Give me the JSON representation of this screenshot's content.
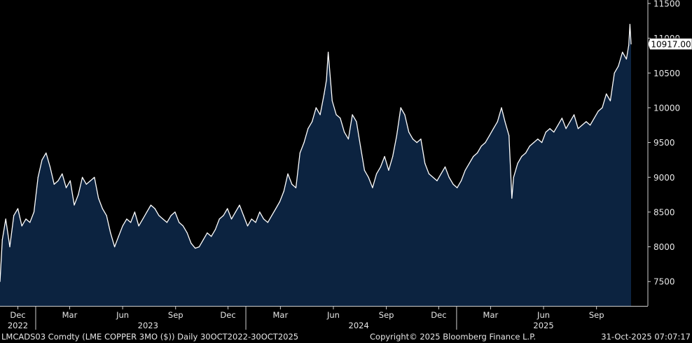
{
  "chart_data": {
    "type": "area",
    "ylim": [
      7150,
      11550
    ],
    "x_range": [
      "2022-10-31",
      "2025-10-31"
    ],
    "y_ticks": [
      7500,
      8000,
      8500,
      9000,
      9500,
      10000,
      10500,
      11000,
      11500
    ],
    "y_tick_labels": [
      "7500",
      "8000",
      "8500",
      "9000",
      "9500",
      "10000",
      "10500",
      "11000",
      "11500"
    ],
    "x_ticks": [
      {
        "label": "Dec",
        "date": "2022-12-01"
      },
      {
        "label": "Mar",
        "date": "2023-03-01"
      },
      {
        "label": "Jun",
        "date": "2023-06-01"
      },
      {
        "label": "Sep",
        "date": "2023-09-01"
      },
      {
        "label": "Dec",
        "date": "2023-12-01"
      },
      {
        "label": "Mar",
        "date": "2024-03-01"
      },
      {
        "label": "Jun",
        "date": "2024-06-01"
      },
      {
        "label": "Sep",
        "date": "2024-09-01"
      },
      {
        "label": "Dec",
        "date": "2024-12-01"
      },
      {
        "label": "Mar",
        "date": "2025-03-01"
      },
      {
        "label": "Jun",
        "date": "2025-06-01"
      },
      {
        "label": "Sep",
        "date": "2025-09-01"
      }
    ],
    "year_labels": [
      {
        "label": "2022",
        "date": "2022-12-01"
      },
      {
        "label": "2023",
        "date": "2023-07-15"
      },
      {
        "label": "2024",
        "date": "2024-07-15"
      },
      {
        "label": "2025",
        "date": "2025-06-01"
      }
    ],
    "last_value_label": "10917.00",
    "grid": false,
    "legend": "none",
    "series": [
      {
        "color": "#ffffff",
        "fill": "#0c2340",
        "x": [
          "2022-10-31",
          "2022-11-04",
          "2022-11-10",
          "2022-11-17",
          "2022-11-24",
          "2022-12-01",
          "2022-12-08",
          "2022-12-15",
          "2022-12-22",
          "2022-12-29",
          "2023-01-05",
          "2023-01-12",
          "2023-01-19",
          "2023-01-26",
          "2023-02-02",
          "2023-02-09",
          "2023-02-16",
          "2023-02-23",
          "2023-03-02",
          "2023-03-09",
          "2023-03-16",
          "2023-03-23",
          "2023-03-30",
          "2023-04-06",
          "2023-04-13",
          "2023-04-20",
          "2023-04-27",
          "2023-05-04",
          "2023-05-11",
          "2023-05-18",
          "2023-05-25",
          "2023-06-01",
          "2023-06-08",
          "2023-06-15",
          "2023-06-22",
          "2023-06-29",
          "2023-07-06",
          "2023-07-13",
          "2023-07-20",
          "2023-07-27",
          "2023-08-03",
          "2023-08-10",
          "2023-08-17",
          "2023-08-24",
          "2023-08-31",
          "2023-09-07",
          "2023-09-14",
          "2023-09-21",
          "2023-09-28",
          "2023-10-05",
          "2023-10-12",
          "2023-10-19",
          "2023-10-26",
          "2023-11-02",
          "2023-11-09",
          "2023-11-16",
          "2023-11-23",
          "2023-11-30",
          "2023-12-07",
          "2023-12-14",
          "2023-12-21",
          "2023-12-28",
          "2024-01-04",
          "2024-01-11",
          "2024-01-18",
          "2024-01-25",
          "2024-02-01",
          "2024-02-08",
          "2024-02-15",
          "2024-02-22",
          "2024-02-29",
          "2024-03-07",
          "2024-03-14",
          "2024-03-21",
          "2024-03-28",
          "2024-04-04",
          "2024-04-11",
          "2024-04-18",
          "2024-04-25",
          "2024-05-02",
          "2024-05-09",
          "2024-05-16",
          "2024-05-20",
          "2024-05-23",
          "2024-05-30",
          "2024-06-06",
          "2024-06-13",
          "2024-06-20",
          "2024-06-27",
          "2024-07-04",
          "2024-07-11",
          "2024-07-18",
          "2024-07-25",
          "2024-08-01",
          "2024-08-08",
          "2024-08-15",
          "2024-08-22",
          "2024-08-29",
          "2024-09-05",
          "2024-09-12",
          "2024-09-19",
          "2024-09-26",
          "2024-10-03",
          "2024-10-10",
          "2024-10-17",
          "2024-10-24",
          "2024-10-31",
          "2024-11-07",
          "2024-11-14",
          "2024-11-21",
          "2024-11-28",
          "2024-12-05",
          "2024-12-12",
          "2024-12-19",
          "2024-12-26",
          "2025-01-02",
          "2025-01-09",
          "2025-01-16",
          "2025-01-23",
          "2025-01-30",
          "2025-02-06",
          "2025-02-13",
          "2025-02-20",
          "2025-02-27",
          "2025-03-06",
          "2025-03-13",
          "2025-03-20",
          "2025-03-26",
          "2025-04-02",
          "2025-04-07",
          "2025-04-10",
          "2025-04-17",
          "2025-04-24",
          "2025-05-01",
          "2025-05-08",
          "2025-05-15",
          "2025-05-22",
          "2025-05-29",
          "2025-06-05",
          "2025-06-12",
          "2025-06-19",
          "2025-06-26",
          "2025-07-03",
          "2025-07-10",
          "2025-07-17",
          "2025-07-24",
          "2025-07-31",
          "2025-08-07",
          "2025-08-14",
          "2025-08-21",
          "2025-08-28",
          "2025-09-04",
          "2025-09-11",
          "2025-09-18",
          "2025-09-25",
          "2025-10-02",
          "2025-10-09",
          "2025-10-16",
          "2025-10-23",
          "2025-10-27",
          "2025-10-29",
          "2025-10-31"
        ],
        "y": [
          7500,
          8100,
          8400,
          8000,
          8450,
          8550,
          8300,
          8400,
          8350,
          8500,
          9000,
          9250,
          9350,
          9150,
          8900,
          8950,
          9050,
          8850,
          8950,
          8600,
          8750,
          9000,
          8900,
          8950,
          9000,
          8700,
          8550,
          8450,
          8200,
          8000,
          8150,
          8300,
          8400,
          8350,
          8500,
          8300,
          8400,
          8500,
          8600,
          8550,
          8450,
          8400,
          8350,
          8450,
          8500,
          8350,
          8300,
          8200,
          8050,
          7980,
          8000,
          8100,
          8200,
          8150,
          8250,
          8400,
          8450,
          8550,
          8400,
          8500,
          8600,
          8450,
          8300,
          8400,
          8350,
          8500,
          8400,
          8350,
          8450,
          8550,
          8650,
          8800,
          9050,
          8900,
          8850,
          9350,
          9500,
          9700,
          9800,
          10000,
          9900,
          10200,
          10400,
          10800,
          10100,
          9900,
          9850,
          9650,
          9550,
          9900,
          9800,
          9450,
          9100,
          9000,
          8850,
          9050,
          9150,
          9300,
          9100,
          9300,
          9600,
          10000,
          9900,
          9650,
          9550,
          9500,
          9550,
          9200,
          9050,
          9000,
          8950,
          9050,
          9150,
          9000,
          8900,
          8850,
          8950,
          9100,
          9200,
          9300,
          9350,
          9450,
          9500,
          9600,
          9700,
          9800,
          10000,
          9800,
          9600,
          8700,
          9000,
          9200,
          9300,
          9350,
          9450,
          9500,
          9550,
          9500,
          9650,
          9700,
          9650,
          9750,
          9850,
          9700,
          9800,
          9900,
          9700,
          9750,
          9800,
          9750,
          9850,
          9950,
          10000,
          10200,
          10100,
          10500,
          10600,
          10800,
          10700,
          10900,
          11200,
          10917
        ]
      }
    ]
  },
  "footer": {
    "ticker": "LMCADS03 Comdty (LME COPPER    3MO ($)) Daily 30OCT2022-30OCT2025",
    "copyright": "Copyright© 2025 Bloomberg Finance L.P.",
    "timestamp": "31-Oct-2025 07:07:17"
  }
}
